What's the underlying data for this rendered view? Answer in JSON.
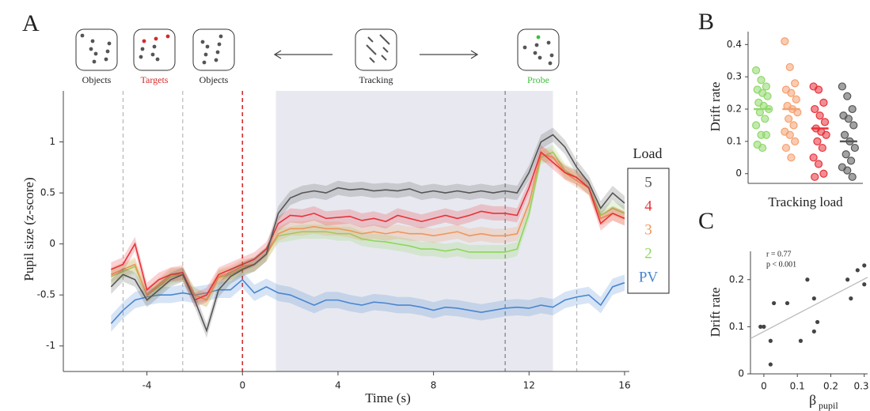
{
  "chart_data": [
    {
      "type": "line",
      "panel_label": "A",
      "stage_labels": [
        "Objects",
        "Targets",
        "Objects",
        "Tracking",
        "Probe"
      ],
      "stage_colors": [
        "#222222",
        "#d42a2a",
        "#222222",
        "#222222",
        "#3fbf3f"
      ],
      "xlabel": "Time (s)",
      "ylabel": "Pupil size (z-score)",
      "xlim": [
        -7.5,
        16.2
      ],
      "ylim": [
        -1.25,
        1.5
      ],
      "xticks": [
        -4,
        0,
        4,
        8,
        12,
        16
      ],
      "yticks": [
        -1,
        -0.5,
        0,
        0.5,
        1
      ],
      "shade": [
        1.4,
        13
      ],
      "vlines": [
        {
          "x": -5,
          "color": "#aaaaaa"
        },
        {
          "x": -2.5,
          "color": "#aaaaaa"
        },
        {
          "x": 0,
          "color": "#d42a2a"
        },
        {
          "x": 11,
          "color": "#666666"
        },
        {
          "x": 14,
          "color": "#aaaaaa"
        }
      ],
      "legend_title": "Load",
      "x": [
        -5.5,
        -5,
        -4.5,
        -4,
        -3.5,
        -3,
        -2.5,
        -2,
        -1.5,
        -1,
        -0.5,
        0,
        0.5,
        1,
        1.5,
        2,
        2.5,
        3,
        3.5,
        4,
        4.5,
        5,
        5.5,
        6,
        6.5,
        7,
        7.5,
        8,
        8.5,
        9,
        9.5,
        10,
        10.5,
        11,
        11.5,
        12,
        12.5,
        13,
        13.5,
        14,
        14.5,
        15,
        15.5,
        16
      ],
      "series": [
        {
          "name": "5",
          "color": "#555555",
          "se": 0.07,
          "values": [
            -0.42,
            -0.3,
            -0.35,
            -0.55,
            -0.45,
            -0.35,
            -0.3,
            -0.55,
            -0.85,
            -0.45,
            -0.32,
            -0.25,
            -0.2,
            -0.1,
            0.3,
            0.45,
            0.5,
            0.52,
            0.5,
            0.55,
            0.53,
            0.54,
            0.52,
            0.53,
            0.52,
            0.54,
            0.5,
            0.52,
            0.5,
            0.52,
            0.5,
            0.52,
            0.5,
            0.52,
            0.5,
            0.7,
            1.0,
            1.07,
            0.95,
            0.75,
            0.6,
            0.35,
            0.5,
            0.4
          ]
        },
        {
          "name": "4",
          "color": "#e8323a",
          "se": 0.07,
          "values": [
            -0.25,
            -0.2,
            0,
            -0.45,
            -0.35,
            -0.3,
            -0.28,
            -0.55,
            -0.5,
            -0.3,
            -0.25,
            -0.2,
            -0.15,
            -0.05,
            0.2,
            0.28,
            0.27,
            0.3,
            0.25,
            0.26,
            0.27,
            0.23,
            0.25,
            0.22,
            0.28,
            0.25,
            0.22,
            0.25,
            0.28,
            0.25,
            0.28,
            0.32,
            0.3,
            0.3,
            0.28,
            0.55,
            0.9,
            0.8,
            0.7,
            0.65,
            0.55,
            0.2,
            0.3,
            0.25
          ]
        },
        {
          "name": "3",
          "color": "#f0955a",
          "se": 0.07,
          "values": [
            -0.3,
            -0.25,
            -0.2,
            -0.5,
            -0.4,
            -0.3,
            -0.3,
            -0.5,
            -0.55,
            -0.32,
            -0.28,
            -0.22,
            -0.2,
            -0.1,
            0.1,
            0.15,
            0.15,
            0.17,
            0.15,
            0.15,
            0.13,
            0.1,
            0.12,
            0.1,
            0.12,
            0.1,
            0.1,
            0.08,
            0.1,
            0.12,
            0.08,
            0.1,
            0.08,
            0.08,
            0.1,
            0.4,
            0.88,
            0.85,
            0.7,
            0.62,
            0.55,
            0.25,
            0.3,
            0.25
          ]
        },
        {
          "name": "2",
          "color": "#8ed65a",
          "se": 0.07,
          "values": [
            -0.32,
            -0.27,
            -0.22,
            -0.5,
            -0.42,
            -0.32,
            -0.3,
            -0.5,
            -0.55,
            -0.33,
            -0.3,
            -0.24,
            -0.2,
            -0.1,
            0.08,
            0.1,
            0.12,
            0.12,
            0.12,
            0.1,
            0.1,
            0.05,
            0.03,
            0.02,
            0,
            -0.02,
            -0.05,
            -0.05,
            -0.07,
            -0.05,
            -0.08,
            -0.08,
            -0.08,
            -0.08,
            -0.05,
            0.3,
            0.85,
            0.9,
            0.72,
            0.65,
            0.55,
            0.28,
            0.35,
            0.3
          ]
        },
        {
          "name": "PV",
          "color": "#4a86d0",
          "se": 0.08,
          "values": [
            -0.78,
            -0.65,
            -0.55,
            -0.52,
            -0.5,
            -0.5,
            -0.48,
            -0.5,
            -0.48,
            -0.45,
            -0.45,
            -0.35,
            -0.48,
            -0.42,
            -0.48,
            -0.5,
            -0.55,
            -0.6,
            -0.55,
            -0.55,
            -0.58,
            -0.6,
            -0.57,
            -0.58,
            -0.6,
            -0.6,
            -0.62,
            -0.65,
            -0.62,
            -0.63,
            -0.65,
            -0.67,
            -0.65,
            -0.63,
            -0.62,
            -0.63,
            -0.6,
            -0.62,
            -0.55,
            -0.52,
            -0.5,
            -0.6,
            -0.42,
            -0.38
          ]
        }
      ]
    },
    {
      "type": "strip",
      "panel_label": "B",
      "ylabel": "Drift rate",
      "xlabel": "Tracking load",
      "ylim": [
        -0.03,
        0.44
      ],
      "yticks": [
        0,
        0.1,
        0.2,
        0.3,
        0.4
      ],
      "series": [
        {
          "color": "#8fd86a",
          "mean": 0.2,
          "values": [
            0.32,
            0.29,
            0.27,
            0.26,
            0.25,
            0.24,
            0.22,
            0.21,
            0.2,
            0.19,
            0.17,
            0.15,
            0.12,
            0.12,
            0.09,
            0.08
          ]
        },
        {
          "color": "#f5a070",
          "mean": 0.2,
          "values": [
            0.41,
            0.33,
            0.28,
            0.26,
            0.25,
            0.23,
            0.21,
            0.2,
            0.19,
            0.17,
            0.15,
            0.13,
            0.12,
            0.1,
            0.08,
            0.05
          ]
        },
        {
          "color": "#e8323a",
          "mean": 0.14,
          "values": [
            0.27,
            0.26,
            0.22,
            0.2,
            0.18,
            0.16,
            0.14,
            0.13,
            0.12,
            0.1,
            0.08,
            0.05,
            0.03,
            0,
            -0.01
          ]
        },
        {
          "color": "#555555",
          "mean": 0.1,
          "values": [
            0.27,
            0.24,
            0.2,
            0.18,
            0.17,
            0.15,
            0.12,
            0.1,
            0.08,
            0.06,
            0.04,
            0.02,
            0.01,
            -0.01
          ]
        }
      ]
    },
    {
      "type": "scatter",
      "panel_label": "C",
      "ylabel": "Drift rate",
      "xlabel": "β",
      "xlabel_sub": "pupil",
      "annotations": [
        "r = 0.77",
        "p < 0.001"
      ],
      "xlim": [
        -0.04,
        0.31
      ],
      "ylim": [
        0,
        0.26
      ],
      "xticks": [
        0,
        0.1,
        0.2,
        0.3
      ],
      "yticks": [
        0,
        0.1,
        0.2
      ],
      "color": "#444444",
      "fit_color": "#bbbbbb",
      "fit_x": [
        -0.04,
        0.31
      ],
      "fit_y": [
        0.075,
        0.205
      ],
      "x": [
        -0.01,
        0,
        0.02,
        0.02,
        0.03,
        0.07,
        0.11,
        0.13,
        0.15,
        0.15,
        0.16,
        0.25,
        0.26,
        0.28,
        0.3,
        0.3
      ],
      "values": [
        0.1,
        0.1,
        0.07,
        0.02,
        0.15,
        0.15,
        0.07,
        0.2,
        0.16,
        0.09,
        0.11,
        0.2,
        0.16,
        0.22,
        0.19,
        0.23
      ]
    }
  ]
}
